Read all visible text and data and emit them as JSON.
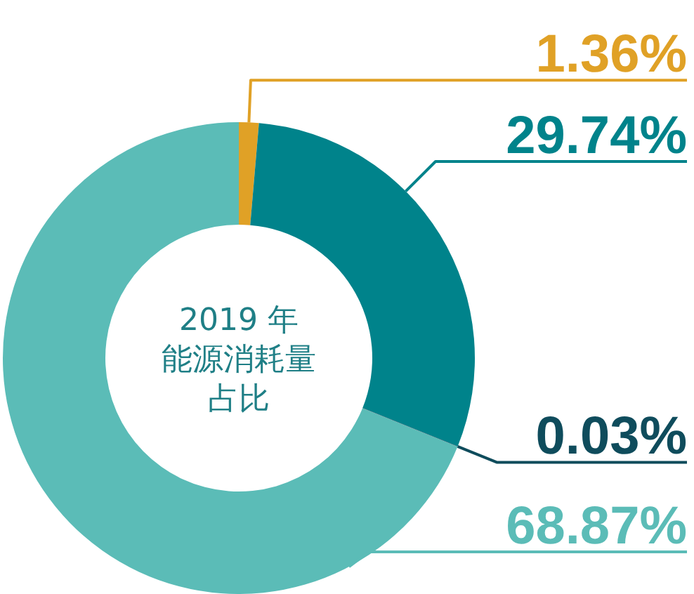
{
  "chart_data": {
    "type": "donut",
    "title": "2019 年",
    "subtitle": "能源消耗量占比",
    "categories": [
      null,
      null,
      null,
      null
    ],
    "values": [
      1.36,
      29.74,
      0.03,
      68.87
    ],
    "value_labels": [
      "1.36%",
      "29.74%",
      "0.03%",
      "68.87%"
    ],
    "colors": [
      "#e0a126",
      "#00838b",
      "#0f4c5c",
      "#5bbcb7"
    ]
  }
}
